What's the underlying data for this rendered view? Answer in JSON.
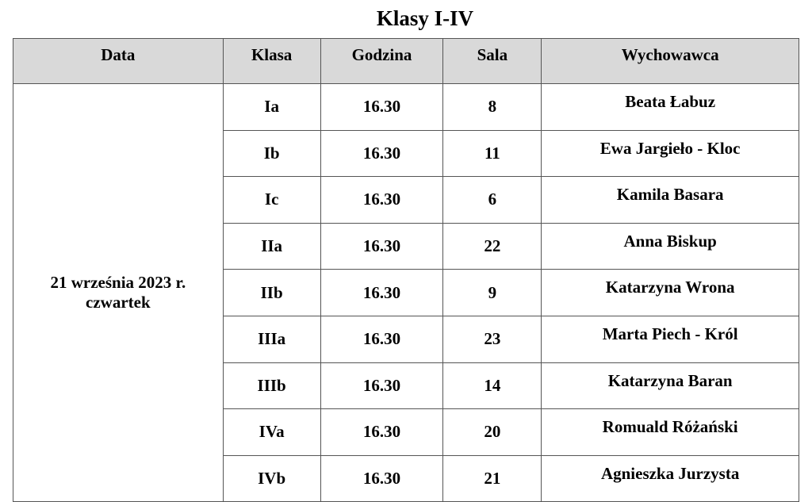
{
  "title": "Klasy I-IV",
  "headers": [
    "Data",
    "Klasa",
    "Godzina",
    "Sala",
    "Wychowawca"
  ],
  "date": {
    "line1": "21 września 2023 r.",
    "line2": "czwartek"
  },
  "rows": [
    {
      "klasa": "Ia",
      "godzina": "16.30",
      "sala": "8",
      "wychowawca": "Beata Łabuz"
    },
    {
      "klasa": "Ib",
      "godzina": "16.30",
      "sala": "11",
      "wychowawca": "Ewa Jargieło - Kloc"
    },
    {
      "klasa": "Ic",
      "godzina": "16.30",
      "sala": "6",
      "wychowawca": "Kamila Basara"
    },
    {
      "klasa": "IIa",
      "godzina": "16.30",
      "sala": "22",
      "wychowawca": "Anna Biskup"
    },
    {
      "klasa": "IIb",
      "godzina": "16.30",
      "sala": "9",
      "wychowawca": "Katarzyna Wrona"
    },
    {
      "klasa": "IIIa",
      "godzina": "16.30",
      "sala": "23",
      "wychowawca": "Marta Piech - Król"
    },
    {
      "klasa": "IIIb",
      "godzina": "16.30",
      "sala": "14",
      "wychowawca": "Katarzyna Baran"
    },
    {
      "klasa": "IVa",
      "godzina": "16.30",
      "sala": "20",
      "wychowawca": "Romuald Różański"
    },
    {
      "klasa": "IVb",
      "godzina": "16.30",
      "sala": "21",
      "wychowawca": "Agnieszka Jurzysta"
    }
  ]
}
